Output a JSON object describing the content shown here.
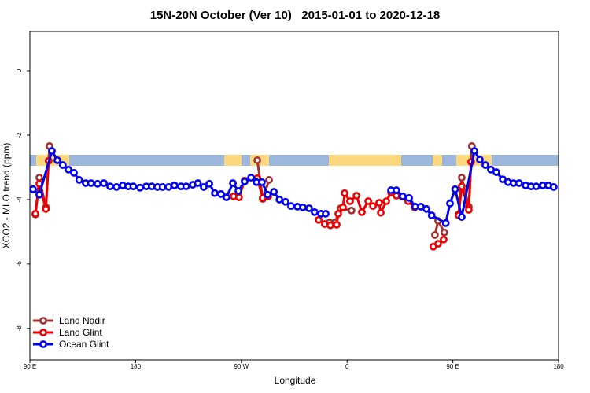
{
  "chart_data": {
    "type": "line",
    "title": "15N-20N October (Ver 10)   2015-01-01 to 2020-12-18",
    "xlabel": "Longitude",
    "ylabel": "XCO2 - MLO trend (ppm)",
    "xlim": [
      90,
      540
    ],
    "ylim": [
      -8.98,
      1.22
    ],
    "xticks": [
      {
        "value": 90,
        "label": "90 E"
      },
      180,
      {
        "value": 270,
        "label": "90 W"
      },
      {
        "value": 360,
        "label": "0"
      },
      {
        "value": 450,
        "label": "90 E"
      },
      {
        "value": 540,
        "label": "180"
      }
    ],
    "yticks": [
      0,
      -2,
      -4,
      -6,
      -8
    ],
    "legend": "bottom-left",
    "series": [
      {
        "name": "Land Nadir",
        "color": "#a3302f",
        "x": [
          94.7,
          98,
          103.6,
          106.7,
          null,
          283.6,
          288.2,
          293.6,
          null,
          345,
          349.7,
          354.4,
          363.8,
          null,
          434.8,
          437.5,
          442.8,
          null,
          454.9,
          457.6,
          463.6,
          466.2
        ],
        "values": [
          -4.46,
          -3.32,
          -4.24,
          -2.34,
          null,
          -2.78,
          -3.98,
          -3.39,
          null,
          -4.71,
          -4.71,
          -4.27,
          -4.34,
          null,
          -5.1,
          -4.66,
          -5.02,
          null,
          -4.46,
          -3.32,
          -4.22,
          -2.34
        ]
      },
      {
        "name": "Land Glint",
        "color": "#ee0000",
        "x": [
          94.7,
          98,
          103.6,
          106,
          null,
          263.4,
          268,
          272.8,
          283.6,
          288.2,
          292.9,
          null,
          335.8,
          341,
          345.8,
          351.2,
          352.5,
          356.5,
          357.9,
          362.5,
          368,
          372.6,
          378,
          382,
          387.3,
          388.7,
          393.4,
          397.4,
          402,
          406.7,
          412,
          417.4,
          null,
          433.4,
          437.5,
          442.2,
          null,
          454.9,
          457.6,
          463.6,
          465.6
        ],
        "values": [
          -4.44,
          -3.51,
          -4.29,
          -2.8,
          null,
          -3.9,
          -3.93,
          -3.41,
          -3.34,
          -3.95,
          -3.9,
          null,
          -4.63,
          -4.76,
          -4.8,
          -4.78,
          -4.44,
          -4.24,
          -3.8,
          -4.05,
          -3.88,
          -4.39,
          -4.05,
          -4.2,
          -4.1,
          -4.41,
          -4.05,
          -3.78,
          -3.88,
          -3.9,
          -4.05,
          -4.24,
          null,
          -5.46,
          -5.37,
          -5.24,
          null,
          -4.49,
          -3.59,
          -4.32,
          -2.83
        ]
      },
      {
        "name": "Ocean Glint",
        "color": "#0000ee",
        "x": [
          92.7,
          98,
          108.8,
          113.4,
          118,
          122.8,
          127.5,
          132,
          137.5,
          142,
          147.6,
          153,
          158.3,
          163.7,
          169,
          173.7,
          178,
          183.8,
          189,
          193.8,
          198.5,
          203,
          208,
          213,
          218.6,
          223,
          228.6,
          233,
          238,
          242.7,
          247.4,
          252.7,
          257.4,
          262.8,
          267.5,
          272.8,
          278.2,
          282.9,
          287.5,
          292.4,
          297.7,
          302.4,
          307.6,
          312.3,
          317.7,
          322.4,
          327.7,
          332.4,
          337.8,
          341.8,
          null,
          397.4,
          402,
          407.4,
          412.8,
          418,
          422.8,
          427.5,
          432,
          444,
          447.6,
          452,
          457.6,
          468.4,
          473,
          477.7,
          482.4,
          487,
          492.5,
          497,
          501.7,
          506.4,
          512,
          516.6,
          521,
          526.6,
          531.3,
          535.9
        ],
        "values": [
          -3.68,
          -3.85,
          -2.49,
          -2.78,
          -2.93,
          -3.07,
          -3.17,
          -3.39,
          -3.49,
          -3.49,
          -3.51,
          -3.49,
          -3.59,
          -3.61,
          -3.56,
          -3.59,
          -3.59,
          -3.63,
          -3.59,
          -3.59,
          -3.61,
          -3.61,
          -3.61,
          -3.56,
          -3.59,
          -3.59,
          -3.54,
          -3.49,
          -3.61,
          -3.51,
          -3.8,
          -3.83,
          -3.93,
          -3.49,
          -3.73,
          -3.44,
          -3.32,
          -3.46,
          -3.46,
          -3.85,
          -3.76,
          -4.0,
          -4.07,
          -4.2,
          -4.22,
          -4.24,
          -4.27,
          -4.39,
          -4.44,
          -4.44,
          null,
          -3.71,
          -3.71,
          -3.9,
          -3.95,
          -4.22,
          -4.22,
          -4.29,
          -4.49,
          -4.73,
          -4.12,
          -3.68,
          -4.54,
          -2.49,
          -2.76,
          -2.93,
          -3.07,
          -3.15,
          -3.37,
          -3.46,
          -3.49,
          -3.49,
          -3.56,
          -3.59,
          -3.59,
          -3.56,
          -3.56,
          -3.61
        ]
      }
    ]
  }
}
